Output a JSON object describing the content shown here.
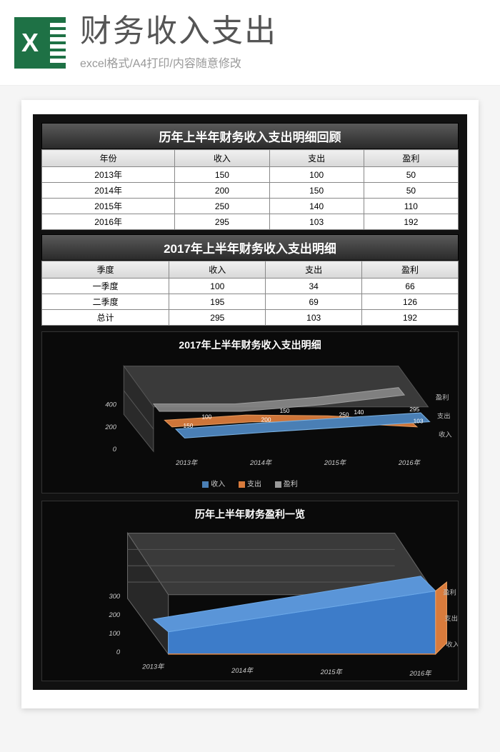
{
  "header": {
    "main_title": "财务收入支出",
    "sub_title": "excel格式/A4打印/内容随意修改"
  },
  "table1": {
    "title": "历年上半年财务收入支出明细回顾",
    "columns": [
      "年份",
      "收入",
      "支出",
      "盈利"
    ],
    "rows": [
      [
        "2013年",
        "150",
        "100",
        "50"
      ],
      [
        "2014年",
        "200",
        "150",
        "50"
      ],
      [
        "2015年",
        "250",
        "140",
        "110"
      ],
      [
        "2016年",
        "295",
        "103",
        "192"
      ]
    ]
  },
  "table2": {
    "title": "2017年上半年财务收入支出明细",
    "columns": [
      "季度",
      "收入",
      "支出",
      "盈利"
    ],
    "rows": [
      [
        "一季度",
        "100",
        "34",
        "66"
      ],
      [
        "二季度",
        "195",
        "69",
        "126"
      ],
      [
        "总计",
        "295",
        "103",
        "192"
      ]
    ]
  },
  "chart1": {
    "title": "2017年上半年财务收入支出明细",
    "type": "3d-area",
    "x_categories": [
      "2013年",
      "2014年",
      "2015年",
      "2016年"
    ],
    "series": [
      {
        "name": "收入",
        "color": "#4a7fb5",
        "values": [
          150,
          200,
          250,
          295
        ]
      },
      {
        "name": "支出",
        "color": "#d97b3c",
        "values": [
          100,
          150,
          140,
          103
        ]
      },
      {
        "name": "盈利",
        "color": "#888888",
        "values": [
          50,
          50,
          110,
          192
        ]
      }
    ],
    "y_ticks": [
      0,
      200,
      400
    ],
    "depth_labels": [
      "盈利",
      "支出",
      "收入"
    ],
    "background": "#0a0a0a",
    "grid_color": "#444",
    "back_wall": "#3a3a3a"
  },
  "chart2": {
    "title": "历年上半年财务盈利一览",
    "type": "3d-area-stacked",
    "x_categories": [
      "2013年",
      "2014年",
      "2015年",
      "2016年"
    ],
    "series_front": {
      "name": "收入",
      "color": "#3d7cc9",
      "values": [
        150,
        200,
        250,
        295
      ]
    },
    "depth_labels": [
      "盈利",
      "支出",
      "收入"
    ],
    "y_ticks": [
      0,
      100,
      200,
      300
    ],
    "background": "#0a0a0a",
    "grid_color": "#555",
    "back_wall": "#3a3a3a",
    "accent": "#d97b3c"
  },
  "legend_labels": {
    "income": "收入",
    "expense": "支出",
    "profit": "盈利"
  },
  "colors": {
    "income": "#4a7fb5",
    "expense": "#d97b3c",
    "profit": "#9a9a9a"
  }
}
